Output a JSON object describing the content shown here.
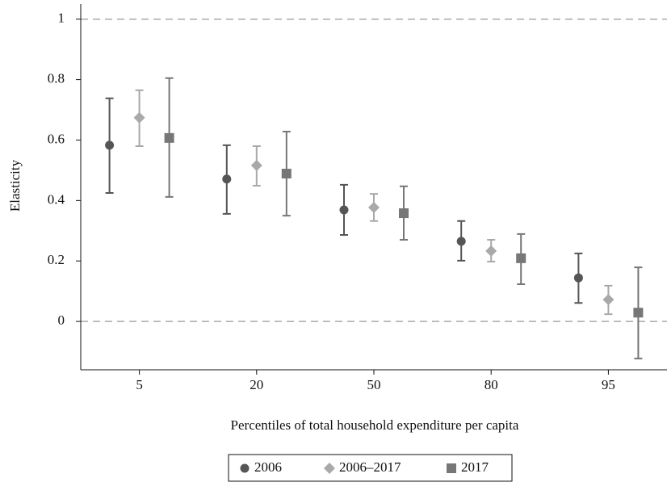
{
  "chart_data": {
    "type": "errorbar",
    "x_label": "Percentiles of total household expenditure per capita",
    "y_label": "Elasticity",
    "categories": [
      "5",
      "20",
      "50",
      "80",
      "95"
    ],
    "series": [
      {
        "name": "2006",
        "color": "#555555",
        "marker": "circle",
        "values": [
          0.583,
          0.471,
          0.369,
          0.265,
          0.144
        ],
        "lower": [
          0.425,
          0.356,
          0.286,
          0.201,
          0.061
        ],
        "upper": [
          0.738,
          0.583,
          0.452,
          0.332,
          0.225
        ]
      },
      {
        "name": "2006–2017",
        "color": "#a9a9a9",
        "marker": "diamond",
        "values": [
          0.674,
          0.516,
          0.377,
          0.233,
          0.072
        ],
        "lower": [
          0.58,
          0.449,
          0.332,
          0.198,
          0.024
        ],
        "upper": [
          0.765,
          0.58,
          0.422,
          0.27,
          0.118
        ]
      },
      {
        "name": "2017",
        "color": "#777777",
        "marker": "square",
        "values": [
          0.607,
          0.489,
          0.358,
          0.209,
          0.029
        ],
        "lower": [
          0.412,
          0.35,
          0.27,
          0.123,
          -0.123
        ],
        "upper": [
          0.805,
          0.628,
          0.447,
          0.289,
          0.179
        ]
      }
    ],
    "ylim": [
      -0.16,
      1.05
    ],
    "yticks": [
      0,
      0.2,
      0.4,
      0.6,
      0.8,
      1
    ],
    "reference_lines": [
      0,
      1
    ],
    "legend": "bottom"
  }
}
